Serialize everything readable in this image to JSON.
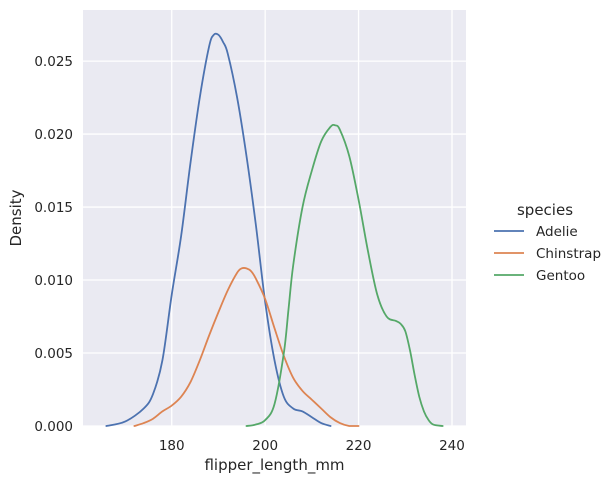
{
  "chart_data": {
    "type": "line",
    "title": "",
    "xlabel": "flipper_length_mm",
    "ylabel": "Density",
    "xlim": [
      161,
      243
    ],
    "ylim": [
      0,
      0.0285
    ],
    "xticks": [
      180,
      200,
      220,
      240
    ],
    "yticks": [
      0.0,
      0.005,
      0.01,
      0.015,
      0.02,
      0.025
    ],
    "ytick_labels": [
      "0.000",
      "0.005",
      "0.010",
      "0.015",
      "0.020",
      "0.025"
    ],
    "grid": true,
    "legend": {
      "title": "species",
      "placement": "right"
    },
    "series": [
      {
        "name": "Adelie",
        "color": "#4c72b0",
        "x": [
          166,
          170,
          174,
          176,
          178,
          180,
          182,
          184,
          186,
          188,
          189,
          190,
          191,
          192,
          194,
          196,
          198,
          200,
          202,
          204,
          206,
          208,
          210,
          212,
          214
        ],
        "y": [
          0.0,
          0.0003,
          0.0012,
          0.0022,
          0.0045,
          0.009,
          0.013,
          0.018,
          0.0225,
          0.026,
          0.0268,
          0.0268,
          0.0263,
          0.0255,
          0.0225,
          0.0185,
          0.0138,
          0.0085,
          0.0045,
          0.002,
          0.0012,
          0.001,
          0.0006,
          0.0002,
          0.0
        ]
      },
      {
        "name": "Chinstrap",
        "color": "#dd8452",
        "x": [
          172,
          174,
          176,
          178,
          180,
          182,
          184,
          186,
          188,
          190,
          192,
          194,
          195,
          196,
          197,
          198,
          200,
          202,
          204,
          206,
          208,
          210,
          212,
          214,
          216,
          218,
          220
        ],
        "y": [
          0.0,
          0.0002,
          0.0005,
          0.001,
          0.0014,
          0.002,
          0.003,
          0.0045,
          0.0062,
          0.0078,
          0.0093,
          0.0105,
          0.0108,
          0.0108,
          0.0106,
          0.0101,
          0.0087,
          0.0067,
          0.0048,
          0.0033,
          0.0024,
          0.0018,
          0.0012,
          0.0006,
          0.0002,
          0.0,
          0.0
        ]
      },
      {
        "name": "Gentoo",
        "color": "#55a868",
        "x": [
          196,
          198,
          200,
          202,
          204,
          205,
          206,
          208,
          210,
          212,
          214,
          215,
          216,
          218,
          220,
          222,
          224,
          226,
          228,
          229,
          230,
          231,
          232,
          233,
          234,
          235,
          236,
          238
        ],
        "y": [
          0.0,
          0.0001,
          0.0004,
          0.0015,
          0.005,
          0.008,
          0.011,
          0.015,
          0.0175,
          0.0195,
          0.0205,
          0.0206,
          0.0203,
          0.0185,
          0.0155,
          0.012,
          0.009,
          0.0075,
          0.0072,
          0.007,
          0.0065,
          0.0052,
          0.0035,
          0.002,
          0.001,
          0.0004,
          0.0001,
          0.0
        ]
      }
    ]
  }
}
